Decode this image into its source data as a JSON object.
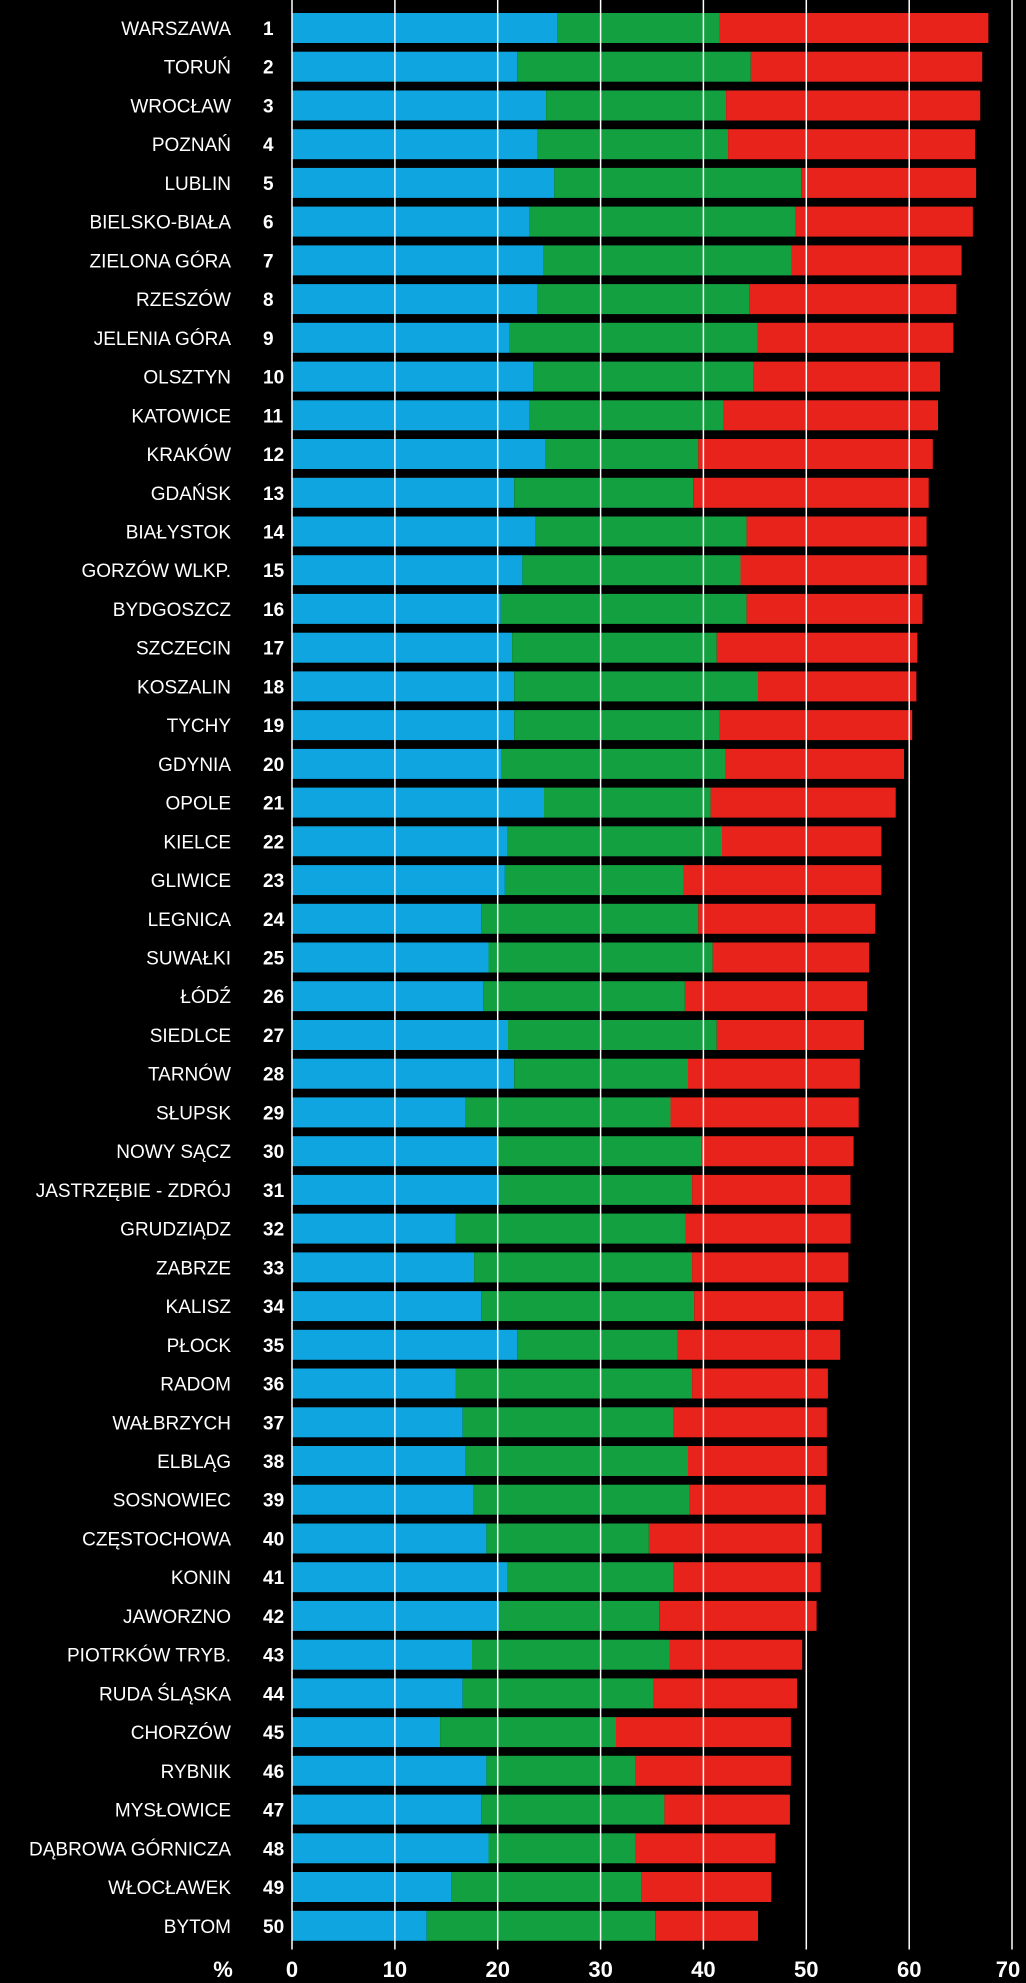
{
  "chart_data": {
    "type": "bar",
    "orientation": "horizontal",
    "stacked": true,
    "unit_label": "%",
    "xlim": [
      0,
      70
    ],
    "x_ticks": [
      "0",
      "10",
      "20",
      "30",
      "40",
      "50",
      "60",
      "70"
    ],
    "grid": true,
    "colors": [
      "#0ea5e0",
      "#13a040",
      "#e8231c"
    ],
    "rows": [
      {
        "rank": "1",
        "city": "WARSZAWA",
        "values": [
          25.8,
          15.8,
          26.1
        ]
      },
      {
        "rank": "2",
        "city": "TORUŃ",
        "values": [
          21.9,
          22.7,
          22.5
        ]
      },
      {
        "rank": "3",
        "city": "WROCŁAW",
        "values": [
          24.7,
          17.5,
          24.7
        ]
      },
      {
        "rank": "4",
        "city": "POZNAŃ",
        "values": [
          23.9,
          18.5,
          24.0
        ]
      },
      {
        "rank": "5",
        "city": "LUBLIN",
        "values": [
          25.5,
          24.0,
          17.0
        ]
      },
      {
        "rank": "6",
        "city": "BIELSKO-BIAŁA",
        "values": [
          23.1,
          25.8,
          17.3
        ]
      },
      {
        "rank": "7",
        "city": "ZIELONA GÓRA",
        "values": [
          24.4,
          24.2,
          16.5
        ]
      },
      {
        "rank": "8",
        "city": "RZESZÓW",
        "values": [
          23.9,
          20.6,
          20.1
        ]
      },
      {
        "rank": "9",
        "city": "JELENIA GÓRA",
        "values": [
          21.1,
          24.2,
          19.0
        ]
      },
      {
        "rank": "10",
        "city": "OLSZTYN",
        "values": [
          23.5,
          21.4,
          18.1
        ]
      },
      {
        "rank": "11",
        "city": "KATOWICE",
        "values": [
          23.1,
          18.8,
          20.9
        ]
      },
      {
        "rank": "12",
        "city": "KRAKÓW",
        "values": [
          24.6,
          14.9,
          22.8
        ]
      },
      {
        "rank": "13",
        "city": "GDAŃSK",
        "values": [
          21.6,
          17.4,
          22.9
        ]
      },
      {
        "rank": "14",
        "city": "BIAŁYSTOK",
        "values": [
          23.7,
          20.5,
          17.5
        ]
      },
      {
        "rank": "15",
        "city": "GORZÓW WLKP.",
        "values": [
          22.4,
          21.2,
          18.1
        ]
      },
      {
        "rank": "16",
        "city": "BYDGOSZCZ",
        "values": [
          20.3,
          23.9,
          17.1
        ]
      },
      {
        "rank": "17",
        "city": "SZCZECIN",
        "values": [
          21.4,
          19.9,
          19.5
        ]
      },
      {
        "rank": "18",
        "city": "KOSZALIN",
        "values": [
          21.6,
          23.7,
          15.4
        ]
      },
      {
        "rank": "19",
        "city": "TYCHY",
        "values": [
          21.6,
          20.0,
          18.7
        ]
      },
      {
        "rank": "20",
        "city": "GDYNIA",
        "values": [
          20.4,
          21.7,
          17.4
        ]
      },
      {
        "rank": "21",
        "city": "OPOLE",
        "values": [
          24.5,
          16.2,
          18.0
        ]
      },
      {
        "rank": "22",
        "city": "KIELCE",
        "values": [
          20.9,
          20.9,
          15.5
        ]
      },
      {
        "rank": "23",
        "city": "GLIWICE",
        "values": [
          20.7,
          17.4,
          19.2
        ]
      },
      {
        "rank": "24",
        "city": "LEGNICA",
        "values": [
          18.4,
          21.1,
          17.2
        ]
      },
      {
        "rank": "25",
        "city": "SUWAŁKI",
        "values": [
          19.1,
          21.8,
          15.2
        ]
      },
      {
        "rank": "26",
        "city": "ŁÓDŹ",
        "values": [
          18.6,
          19.6,
          17.7
        ]
      },
      {
        "rank": "27",
        "city": "SIEDLCE",
        "values": [
          21.0,
          20.3,
          14.3
        ]
      },
      {
        "rank": "28",
        "city": "TARNÓW",
        "values": [
          21.6,
          16.9,
          16.7
        ]
      },
      {
        "rank": "29",
        "city": "SŁUPSK",
        "values": [
          16.9,
          19.9,
          18.3
        ]
      },
      {
        "rank": "30",
        "city": "NOWY SĄCZ",
        "values": [
          20.0,
          19.8,
          14.8
        ]
      },
      {
        "rank": "31",
        "city": "JASTRZĘBIE - ZDRÓJ",
        "values": [
          20.2,
          18.7,
          15.4
        ]
      },
      {
        "rank": "32",
        "city": "GRUDZIĄDZ",
        "values": [
          15.9,
          22.4,
          16.0
        ]
      },
      {
        "rank": "33",
        "city": "ZABRZE",
        "values": [
          17.7,
          21.2,
          15.2
        ]
      },
      {
        "rank": "34",
        "city": "KALISZ",
        "values": [
          18.4,
          20.7,
          14.5
        ]
      },
      {
        "rank": "35",
        "city": "PŁOCK",
        "values": [
          21.9,
          15.6,
          15.8
        ]
      },
      {
        "rank": "36",
        "city": "RADOM",
        "values": [
          15.9,
          23.0,
          13.2
        ]
      },
      {
        "rank": "37",
        "city": "WAŁBRZYCH",
        "values": [
          16.6,
          20.5,
          14.9
        ]
      },
      {
        "rank": "38",
        "city": "ELBLĄG",
        "values": [
          16.9,
          21.6,
          13.5
        ]
      },
      {
        "rank": "39",
        "city": "SOSNOWIEC",
        "values": [
          17.6,
          21.0,
          13.3
        ]
      },
      {
        "rank": "40",
        "city": "CZĘSTOCHOWA",
        "values": [
          18.9,
          15.8,
          16.8
        ]
      },
      {
        "rank": "41",
        "city": "KONIN",
        "values": [
          20.9,
          16.2,
          14.3
        ]
      },
      {
        "rank": "42",
        "city": "JAWORZNO",
        "values": [
          20.2,
          15.5,
          15.3
        ]
      },
      {
        "rank": "43",
        "city": "PIOTRKÓW TRYB.",
        "values": [
          17.5,
          19.2,
          12.9
        ]
      },
      {
        "rank": "44",
        "city": "RUDA ŚLĄSKA",
        "values": [
          16.6,
          18.5,
          14.0
        ]
      },
      {
        "rank": "45",
        "city": "CHORZÓW",
        "values": [
          14.4,
          17.1,
          17.0
        ]
      },
      {
        "rank": "46",
        "city": "RYBNIK",
        "values": [
          18.9,
          14.5,
          15.1
        ]
      },
      {
        "rank": "47",
        "city": "MYSŁOWICE",
        "values": [
          18.4,
          17.8,
          12.2
        ]
      },
      {
        "rank": "48",
        "city": "DĄBROWA GÓRNICZA",
        "values": [
          19.1,
          14.3,
          13.6
        ]
      },
      {
        "rank": "49",
        "city": "WŁOCŁAWEK",
        "values": [
          15.5,
          18.5,
          12.6
        ]
      },
      {
        "rank": "50",
        "city": "BYTOM",
        "values": [
          13.1,
          22.2,
          10.0
        ]
      }
    ]
  }
}
